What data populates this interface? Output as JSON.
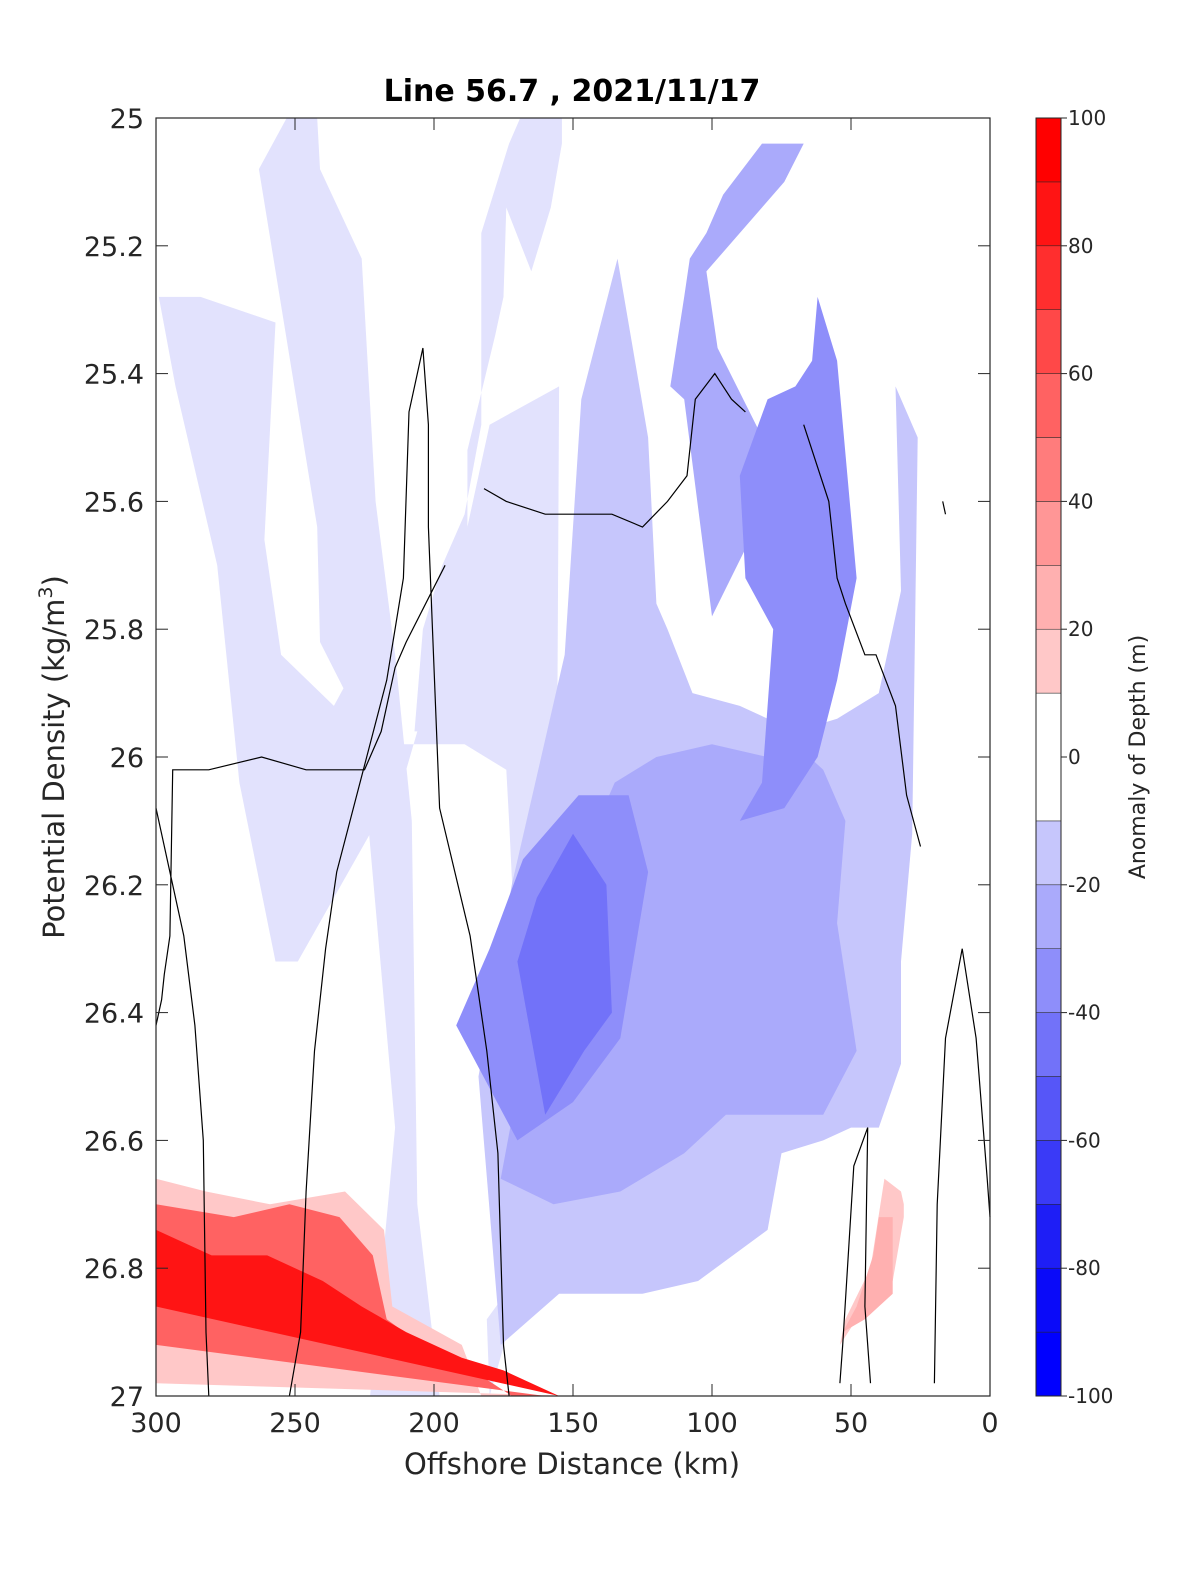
{
  "chart_data": {
    "type": "filled-contour",
    "title": "Line 56.7 , 2021/11/17",
    "xlabel": "Offshore Distance (km)",
    "ylabel": "Potential Density (kg/m",
    "ylabel_sup": "3",
    "ylabel_close": ")",
    "colorbar_label": "Anomaly of Depth (m)",
    "xlim": [
      300,
      0
    ],
    "x_reversed": true,
    "ylim": [
      25,
      27
    ],
    "y_reversed": true,
    "x_ticks": [
      "300",
      "250",
      "200",
      "150",
      "100",
      "50",
      "0"
    ],
    "y_ticks": [
      "25",
      "25.2",
      "25.4",
      "25.6",
      "25.8",
      "26",
      "26.2",
      "26.4",
      "26.6",
      "26.8",
      "27"
    ],
    "colorbar_ticks": [
      "100",
      "80",
      "60",
      "40",
      "20",
      "0",
      "-20",
      "-40",
      "-60",
      "-80",
      "-100"
    ],
    "colorbar_range": [
      -100,
      100
    ],
    "contour_levels": [
      -100,
      -90,
      -80,
      -70,
      -60,
      -50,
      -40,
      -30,
      -20,
      -10,
      10,
      20,
      30,
      40,
      50,
      60,
      70,
      80,
      90,
      100
    ],
    "colors": {
      "pos": [
        "#ffe0e0",
        "#ffc8c8",
        "#ffb0b0",
        "#ff9696",
        "#ff7c7c",
        "#ff6262",
        "#ff4848",
        "#ff2e2e",
        "#ff1414",
        "#ff0000"
      ],
      "neg": [
        "#e2e2fd",
        "#c6c6fc",
        "#aaaafb",
        "#8e8efa",
        "#7272f9",
        "#5656f8",
        "#3a3af7",
        "#1e1ef6",
        "#0a0af9",
        "#0000ff"
      ],
      "zero_band": "#ffffff"
    },
    "regions": [
      {
        "level": -10,
        "points": [
          [
            262,
            1.0
          ],
          [
            223,
            1.0
          ],
          [
            214,
            0.79
          ],
          [
            227,
            0.47
          ],
          [
            241,
            0.41
          ],
          [
            242,
            0.32
          ],
          [
            263,
            0.04
          ],
          [
            253,
            0.0
          ],
          [
            242,
            0.0
          ],
          [
            241,
            0.04
          ],
          [
            226,
            0.11
          ],
          [
            221,
            0.3
          ],
          [
            214,
            0.42
          ],
          [
            208,
            0.55
          ],
          [
            206,
            0.85
          ],
          [
            198,
            1.0
          ]
        ]
      },
      {
        "level": -10,
        "points": [
          [
            180,
            1.0
          ],
          [
            167,
            0.9
          ],
          [
            156,
            0.62
          ],
          [
            155,
            0.21
          ],
          [
            180,
            0.24
          ],
          [
            198,
            0.42
          ],
          [
            210,
            0.51
          ],
          [
            249,
            0.66
          ],
          [
            257,
            0.66
          ],
          [
            270,
            0.52
          ],
          [
            278,
            0.35
          ],
          [
            293,
            0.21
          ],
          [
            299,
            0.14
          ],
          [
            284,
            0.14
          ],
          [
            257,
            0.16
          ],
          [
            261,
            0.33
          ],
          [
            255,
            0.42
          ],
          [
            236,
            0.46
          ],
          [
            226,
            0.42
          ],
          [
            212,
            0.49
          ],
          [
            189,
            0.49
          ],
          [
            174,
            0.51
          ],
          [
            173,
            0.55
          ],
          [
            171,
            0.64
          ],
          [
            168,
            0.78
          ],
          [
            171,
            0.91
          ],
          [
            181,
            0.94
          ]
        ]
      },
      {
        "level": -10,
        "points": [
          [
            207,
            0.48
          ],
          [
            202,
            0.48
          ],
          [
            197,
            0.48
          ],
          [
            195,
            0.44
          ],
          [
            190,
            0.4
          ],
          [
            188,
            0.33
          ],
          [
            188,
            0.26
          ],
          [
            178,
            0.17
          ],
          [
            175,
            0.14
          ],
          [
            174,
            0.07
          ],
          [
            165,
            0.12
          ],
          [
            158,
            0.07
          ],
          [
            154,
            0.02
          ],
          [
            154,
            0.0
          ],
          [
            169,
            0.0
          ],
          [
            173,
            0.02
          ],
          [
            183,
            0.09
          ],
          [
            183,
            0.24
          ],
          [
            189,
            0.31
          ],
          [
            197,
            0.35
          ],
          [
            204,
            0.4
          ]
        ]
      },
      {
        "level": -20,
        "points": [
          [
            184,
            0.75
          ],
          [
            172,
            0.6
          ],
          [
            153,
            0.42
          ],
          [
            147,
            0.22
          ],
          [
            134,
            0.11
          ],
          [
            123,
            0.25
          ],
          [
            120,
            0.38
          ],
          [
            116,
            0.4
          ],
          [
            107,
            0.45
          ],
          [
            90,
            0.46
          ],
          [
            70,
            0.48
          ],
          [
            55,
            0.47
          ],
          [
            40,
            0.45
          ],
          [
            32,
            0.37
          ],
          [
            34,
            0.21
          ],
          [
            26,
            0.25
          ],
          [
            28,
            0.56
          ],
          [
            32,
            0.66
          ],
          [
            32,
            0.74
          ],
          [
            40,
            0.79
          ],
          [
            50,
            0.79
          ],
          [
            60,
            0.8
          ],
          [
            75,
            0.81
          ],
          [
            80,
            0.87
          ],
          [
            105,
            0.91
          ],
          [
            125,
            0.92
          ],
          [
            155,
            0.92
          ],
          [
            176,
            0.96
          ]
        ]
      },
      {
        "level": -30,
        "points": [
          [
            176,
            0.83
          ],
          [
            164,
            0.69
          ],
          [
            155,
            0.61
          ],
          [
            145,
            0.57
          ],
          [
            135,
            0.52
          ],
          [
            120,
            0.5
          ],
          [
            100,
            0.49
          ],
          [
            80,
            0.5
          ],
          [
            70,
            0.49
          ],
          [
            60,
            0.51
          ],
          [
            52,
            0.55
          ],
          [
            55,
            0.63
          ],
          [
            48,
            0.73
          ],
          [
            60,
            0.78
          ],
          [
            95,
            0.78
          ],
          [
            110,
            0.81
          ],
          [
            133,
            0.84
          ],
          [
            157,
            0.85
          ]
        ]
      },
      {
        "level": -30,
        "points": [
          [
            100,
            0.39
          ],
          [
            75,
            0.28
          ],
          [
            98,
            0.18
          ],
          [
            102,
            0.12
          ],
          [
            74,
            0.05
          ],
          [
            67,
            0.02
          ],
          [
            82,
            0.02
          ],
          [
            96,
            0.06
          ],
          [
            102,
            0.09
          ],
          [
            108,
            0.11
          ],
          [
            110,
            0.14
          ],
          [
            115,
            0.21
          ],
          [
            110,
            0.22
          ]
        ]
      },
      {
        "level": -40,
        "points": [
          [
            90,
            0.55
          ],
          [
            82,
            0.52
          ],
          [
            78,
            0.4
          ],
          [
            88,
            0.36
          ],
          [
            90,
            0.28
          ],
          [
            80,
            0.22
          ],
          [
            70,
            0.21
          ],
          [
            64,
            0.19
          ],
          [
            62,
            0.14
          ],
          [
            55,
            0.19
          ],
          [
            48,
            0.36
          ],
          [
            55,
            0.44
          ],
          [
            62,
            0.5
          ],
          [
            74,
            0.54
          ]
        ]
      },
      {
        "level": -40,
        "points": [
          [
            170,
            0.8
          ],
          [
            150,
            0.77
          ],
          [
            133,
            0.72
          ],
          [
            123,
            0.59
          ],
          [
            130,
            0.53
          ],
          [
            148,
            0.53
          ],
          [
            168,
            0.58
          ],
          [
            180,
            0.65
          ],
          [
            192,
            0.71
          ]
        ]
      },
      {
        "level": -50,
        "points": [
          [
            160,
            0.78
          ],
          [
            146,
            0.73
          ],
          [
            136,
            0.7
          ],
          [
            138,
            0.6
          ],
          [
            150,
            0.56
          ],
          [
            163,
            0.61
          ],
          [
            170,
            0.66
          ]
        ]
      },
      {
        "level": 20,
        "points": [
          [
            300,
            0.99
          ],
          [
            300,
            0.83
          ],
          [
            282,
            0.84
          ],
          [
            259,
            0.85
          ],
          [
            232,
            0.84
          ],
          [
            218,
            0.87
          ],
          [
            215,
            0.93
          ],
          [
            190,
            0.96
          ],
          [
            183,
            1.0
          ],
          [
            170,
            1.0
          ],
          [
            160,
            1.0
          ],
          [
            151,
            1.0
          ]
        ]
      },
      {
        "level": 60,
        "points": [
          [
            300,
            0.96
          ],
          [
            300,
            0.85
          ],
          [
            272,
            0.86
          ],
          [
            252,
            0.85
          ],
          [
            234,
            0.86
          ],
          [
            222,
            0.89
          ],
          [
            217,
            0.94
          ],
          [
            198,
            0.97
          ],
          [
            186,
            0.98
          ],
          [
            172,
            1.0
          ],
          [
            160,
            1.0
          ]
        ]
      },
      {
        "level": 90,
        "points": [
          [
            300,
            0.93
          ],
          [
            300,
            0.87
          ],
          [
            280,
            0.89
          ],
          [
            260,
            0.89
          ],
          [
            240,
            0.91
          ],
          [
            226,
            0.93
          ],
          [
            210,
            0.95
          ],
          [
            190,
            0.97
          ],
          [
            175,
            0.98
          ],
          [
            155,
            1.0
          ]
        ]
      },
      {
        "level": 20,
        "points": [
          [
            54,
            0.96
          ],
          [
            52,
            0.94
          ],
          [
            43,
            0.9
          ],
          [
            38,
            0.83
          ],
          [
            32,
            0.84
          ],
          [
            31,
            0.85
          ],
          [
            31,
            0.86
          ],
          [
            35,
            0.91
          ],
          [
            45,
            0.93
          ]
        ]
      },
      {
        "level": 30,
        "points": [
          [
            53,
            0.95
          ],
          [
            48,
            0.93
          ],
          [
            42,
            0.89
          ],
          [
            40,
            0.86
          ],
          [
            35,
            0.86
          ],
          [
            35,
            0.92
          ],
          [
            45,
            0.94
          ]
        ]
      }
    ],
    "zero_contours": [
      [
        [
          300,
          0.54
        ],
        [
          295,
          0.59
        ],
        [
          290,
          0.64
        ],
        [
          286,
          0.71
        ],
        [
          283,
          0.8
        ],
        [
          282,
          0.95
        ],
        [
          281,
          1.0
        ]
      ],
      [
        [
          252,
          1.0
        ],
        [
          248,
          0.95
        ],
        [
          246,
          0.84
        ],
        [
          243,
          0.73
        ],
        [
          239,
          0.65
        ],
        [
          235,
          0.59
        ],
        [
          217,
          0.44
        ],
        [
          211,
          0.36
        ],
        [
          209,
          0.23
        ],
        [
          204,
          0.18
        ],
        [
          202,
          0.24
        ],
        [
          202,
          0.32
        ],
        [
          198,
          0.54
        ],
        [
          187,
          0.64
        ],
        [
          181,
          0.73
        ],
        [
          177,
          0.81
        ],
        [
          175,
          0.96
        ],
        [
          173,
          1.0
        ]
      ],
      [
        [
          300,
          0.71
        ],
        [
          298,
          0.69
        ],
        [
          297,
          0.67
        ],
        [
          295,
          0.64
        ],
        [
          294,
          0.51
        ],
        [
          281,
          0.51
        ],
        [
          262,
          0.5
        ],
        [
          246,
          0.51
        ],
        [
          225,
          0.51
        ],
        [
          219,
          0.48
        ],
        [
          214,
          0.43
        ],
        [
          210,
          0.41
        ],
        [
          196,
          0.35
        ]
      ],
      [
        [
          182,
          0.29
        ],
        [
          174,
          0.3
        ],
        [
          160,
          0.31
        ],
        [
          150,
          0.31
        ],
        [
          136,
          0.31
        ],
        [
          125,
          0.32
        ],
        [
          116,
          0.3
        ],
        [
          109,
          0.28
        ],
        [
          106,
          0.22
        ],
        [
          99,
          0.2
        ],
        [
          93,
          0.22
        ],
        [
          88,
          0.23
        ]
      ],
      [
        [
          67,
          0.24
        ],
        [
          58,
          0.3
        ],
        [
          55,
          0.36
        ],
        [
          52,
          0.38
        ],
        [
          45,
          0.42
        ],
        [
          41,
          0.42
        ],
        [
          34,
          0.46
        ],
        [
          30,
          0.53
        ],
        [
          25,
          0.57
        ]
      ],
      [
        [
          54,
          0.99
        ],
        [
          53,
          0.96
        ],
        [
          49,
          0.82
        ],
        [
          44,
          0.79
        ],
        [
          45,
          0.93
        ],
        [
          43,
          0.99
        ]
      ],
      [
        [
          20,
          0.99
        ],
        [
          19,
          0.85
        ],
        [
          16,
          0.72
        ],
        [
          10,
          0.65
        ],
        [
          5,
          0.72
        ],
        [
          1,
          0.83
        ],
        [
          0,
          0.86
        ]
      ],
      [
        [
          17,
          0.3
        ],
        [
          16,
          0.31
        ]
      ]
    ]
  }
}
